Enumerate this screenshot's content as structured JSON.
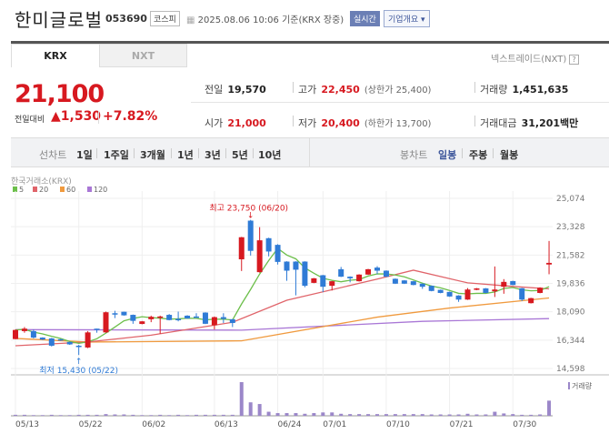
{
  "header": {
    "title": "한미글로벌",
    "code": "053690",
    "market": "코스피",
    "datetime": "2025.08.06 10:06 기준(KRX 장중)",
    "realtime": "실시간",
    "company_info": "기업개요 ▾"
  },
  "tabs": [
    {
      "label": "KRX",
      "active": true
    },
    {
      "label": "NXT",
      "active": false
    }
  ],
  "nxt_link": "넥스트레이드(NXT)",
  "help": "?",
  "quote": {
    "price": "21,100",
    "change_label": "전일대비",
    "change": "▲1,530",
    "change_pct": "+7.82%",
    "prev_label": "전일",
    "prev": "19,570",
    "high_label": "고가",
    "high": "22,450",
    "upper_limit": "(상한가 25,400)",
    "volume_label": "거래량",
    "volume": "1,451,635",
    "open_label": "시가",
    "open": "21,000",
    "low_label": "저가",
    "low": "20,400",
    "lower_limit": "(하한가 13,700)",
    "amount_label": "거래대금",
    "amount": "31,201",
    "amount_unit": "백만"
  },
  "toolbar": {
    "line_label": "선차트",
    "line_periods": [
      "1일",
      "1주일",
      "3개월",
      "1년",
      "3년",
      "5년",
      "10년"
    ],
    "candle_label": "봉차트",
    "candle_periods": [
      "일봉",
      "주봉",
      "월봉"
    ],
    "active_candle": "일봉"
  },
  "colors": {
    "up": "#d71920",
    "down": "#2f7bd6",
    "ma5": "#6cbf4a",
    "ma20": "#e0646a",
    "ma60": "#f09a3e",
    "ma120": "#a977d6",
    "volume": "#9b87c9",
    "accent": "#3c559a"
  },
  "chart_data": {
    "type": "candlestick",
    "source": "한국거래소(KRX)",
    "legend": [
      "5",
      "20",
      "60",
      "120"
    ],
    "y_ticks": [
      "25,074",
      "23,328",
      "21,582",
      "19,836",
      "18,090",
      "16,344",
      "14,598"
    ],
    "ylim": [
      14598,
      25074
    ],
    "x_ticks": [
      {
        "label": "05/13",
        "i": 0
      },
      {
        "label": "05/22",
        "i": 7
      },
      {
        "label": "06/02",
        "i": 14
      },
      {
        "label": "06/13",
        "i": 22
      },
      {
        "label": "06/24",
        "i": 29
      },
      {
        "label": "07/01",
        "i": 34
      },
      {
        "label": "07/10",
        "i": 41
      },
      {
        "label": "07/21",
        "i": 48
      },
      {
        "label": "07/30",
        "i": 55
      }
    ],
    "max_label": "최고 23,750 (06/20)",
    "max_index": 26,
    "max_value": 23750,
    "min_label": "최저 15,430 (05/22)",
    "min_index": 7,
    "min_value": 15430,
    "volume_label": "거래량",
    "candles": [
      [
        16410,
        16970,
        17000,
        16400
      ],
      [
        16900,
        17050,
        17150,
        16800
      ],
      [
        16900,
        16500,
        17000,
        16450
      ],
      [
        16500,
        16380,
        16520,
        16350
      ],
      [
        16450,
        16000,
        16480,
        15950
      ],
      [
        16400,
        16320,
        16420,
        16300
      ],
      [
        16230,
        16080,
        16250,
        16050
      ],
      [
        16000,
        15950,
        16050,
        15430
      ],
      [
        15890,
        16820,
        16900,
        15850
      ],
      [
        17050,
        16970,
        17050,
        16800
      ],
      [
        16820,
        18060,
        18100,
        16800
      ],
      [
        18000,
        17950,
        18150,
        17700
      ],
      [
        18090,
        17870,
        18100,
        17850
      ],
      [
        17900,
        17530,
        17920,
        17350
      ],
      [
        17340,
        17500,
        17520,
        17320
      ],
      [
        17630,
        17780,
        17850,
        17450
      ],
      [
        17720,
        17800,
        17850,
        16740
      ],
      [
        17900,
        17580,
        17950,
        17560
      ],
      [
        17650,
        17620,
        18100,
        17500
      ],
      [
        17850,
        17680,
        17880,
        17660
      ],
      [
        17800,
        17750,
        18000,
        17730
      ],
      [
        18040,
        17350,
        18060,
        17330
      ],
      [
        17260,
        17760,
        17800,
        17000
      ],
      [
        17760,
        17650,
        18000,
        17400
      ],
      [
        17630,
        17400,
        17650,
        17150
      ],
      [
        21320,
        22680,
        22700,
        20600
      ],
      [
        23700,
        21840,
        23750,
        21550
      ],
      [
        20530,
        22490,
        23300,
        20500
      ],
      [
        22620,
        21800,
        22650,
        21500
      ],
      [
        22210,
        21160,
        22250,
        21000
      ],
      [
        21180,
        20620,
        21200,
        20000
      ],
      [
        21180,
        20680,
        21200,
        19100
      ],
      [
        21180,
        19690,
        21200,
        19600
      ],
      [
        19870,
        20150,
        20170,
        19850
      ],
      [
        20340,
        19630,
        20360,
        19300
      ],
      [
        19690,
        19970,
        19990,
        19400
      ],
      [
        20710,
        20250,
        20850,
        20230
      ],
      [
        20250,
        20150,
        20270,
        19900
      ],
      [
        19970,
        20380,
        20400,
        19950
      ],
      [
        20380,
        20710,
        20730,
        20360
      ],
      [
        20810,
        20620,
        20900,
        20400
      ],
      [
        20620,
        20250,
        20640,
        20230
      ],
      [
        20120,
        19820,
        20140,
        19800
      ],
      [
        20020,
        19820,
        20040,
        19800
      ],
      [
        19970,
        19740,
        19990,
        19720
      ],
      [
        19820,
        19630,
        19840,
        19500
      ],
      [
        19690,
        19370,
        19710,
        19350
      ],
      [
        19440,
        19250,
        19460,
        19230
      ],
      [
        19310,
        19030,
        19330,
        19010
      ],
      [
        19090,
        18840,
        19110,
        18700
      ],
      [
        18840,
        19460,
        19550,
        18820
      ],
      [
        19440,
        19530,
        19550,
        19420
      ],
      [
        19530,
        19250,
        19550,
        19230
      ],
      [
        19350,
        19460,
        20880,
        19000
      ],
      [
        19630,
        19930,
        20100,
        19200
      ],
      [
        19980,
        19740,
        20000,
        19720
      ],
      [
        19540,
        18840,
        19560,
        18750
      ],
      [
        18620,
        18930,
        18950,
        18600
      ],
      [
        19250,
        19570,
        19600,
        19230
      ],
      [
        21000,
        21100,
        22450,
        20400
      ]
    ],
    "ma20": [
      [
        0,
        16000
      ],
      [
        8,
        16230
      ],
      [
        15,
        16650
      ],
      [
        24,
        17440
      ],
      [
        30,
        18800
      ],
      [
        40,
        20100
      ],
      [
        44,
        20650
      ],
      [
        50,
        19870
      ],
      [
        55,
        19650
      ],
      [
        59,
        19500
      ]
    ],
    "ma60": [
      [
        0,
        16450
      ],
      [
        8,
        16225
      ],
      [
        25,
        16300
      ],
      [
        40,
        17760
      ],
      [
        48,
        18320
      ],
      [
        59,
        18940
      ]
    ],
    "ma120": [
      [
        0,
        16990
      ],
      [
        25,
        16960
      ],
      [
        45,
        17500
      ],
      [
        59,
        17670
      ]
    ],
    "volume_relative": [
      3,
      3,
      2,
      2,
      3,
      2,
      2,
      3,
      3,
      3,
      5,
      4,
      4,
      3,
      2,
      2,
      3,
      2,
      3,
      2,
      3,
      3,
      3,
      3,
      3,
      100,
      40,
      35,
      12,
      8,
      8,
      8,
      6,
      8,
      10,
      10,
      6,
      5,
      5,
      5,
      5,
      5,
      5,
      5,
      5,
      5,
      4,
      4,
      4,
      4,
      6,
      4,
      4,
      12,
      7,
      5,
      3,
      3,
      4,
      45
    ]
  }
}
